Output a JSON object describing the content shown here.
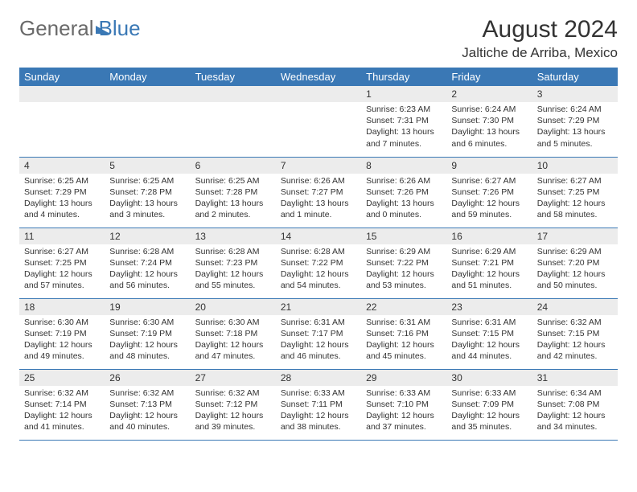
{
  "logo": {
    "general": "General",
    "blue": "Blue"
  },
  "header": {
    "month_title": "August 2024",
    "location": "Jaltiche de Arriba, Mexico"
  },
  "columns": [
    "Sunday",
    "Monday",
    "Tuesday",
    "Wednesday",
    "Thursday",
    "Friday",
    "Saturday"
  ],
  "colors": {
    "accent": "#3a78b5",
    "header_text": "#ffffff",
    "daynum_bg": "#ececec",
    "text": "#333333",
    "bg": "#ffffff"
  },
  "typography": {
    "title_fontsize": 30,
    "location_fontsize": 17,
    "col_header_fontsize": 13,
    "daynum_fontsize": 12,
    "body_fontsize": 10.5
  },
  "weeks": [
    [
      {
        "day": "",
        "lines": []
      },
      {
        "day": "",
        "lines": []
      },
      {
        "day": "",
        "lines": []
      },
      {
        "day": "",
        "lines": []
      },
      {
        "day": "1",
        "lines": [
          "Sunrise: 6:23 AM",
          "Sunset: 7:31 PM",
          "Daylight: 13 hours and 7 minutes."
        ]
      },
      {
        "day": "2",
        "lines": [
          "Sunrise: 6:24 AM",
          "Sunset: 7:30 PM",
          "Daylight: 13 hours and 6 minutes."
        ]
      },
      {
        "day": "3",
        "lines": [
          "Sunrise: 6:24 AM",
          "Sunset: 7:29 PM",
          "Daylight: 13 hours and 5 minutes."
        ]
      }
    ],
    [
      {
        "day": "4",
        "lines": [
          "Sunrise: 6:25 AM",
          "Sunset: 7:29 PM",
          "Daylight: 13 hours and 4 minutes."
        ]
      },
      {
        "day": "5",
        "lines": [
          "Sunrise: 6:25 AM",
          "Sunset: 7:28 PM",
          "Daylight: 13 hours and 3 minutes."
        ]
      },
      {
        "day": "6",
        "lines": [
          "Sunrise: 6:25 AM",
          "Sunset: 7:28 PM",
          "Daylight: 13 hours and 2 minutes."
        ]
      },
      {
        "day": "7",
        "lines": [
          "Sunrise: 6:26 AM",
          "Sunset: 7:27 PM",
          "Daylight: 13 hours and 1 minute."
        ]
      },
      {
        "day": "8",
        "lines": [
          "Sunrise: 6:26 AM",
          "Sunset: 7:26 PM",
          "Daylight: 13 hours and 0 minutes."
        ]
      },
      {
        "day": "9",
        "lines": [
          "Sunrise: 6:27 AM",
          "Sunset: 7:26 PM",
          "Daylight: 12 hours and 59 minutes."
        ]
      },
      {
        "day": "10",
        "lines": [
          "Sunrise: 6:27 AM",
          "Sunset: 7:25 PM",
          "Daylight: 12 hours and 58 minutes."
        ]
      }
    ],
    [
      {
        "day": "11",
        "lines": [
          "Sunrise: 6:27 AM",
          "Sunset: 7:25 PM",
          "Daylight: 12 hours and 57 minutes."
        ]
      },
      {
        "day": "12",
        "lines": [
          "Sunrise: 6:28 AM",
          "Sunset: 7:24 PM",
          "Daylight: 12 hours and 56 minutes."
        ]
      },
      {
        "day": "13",
        "lines": [
          "Sunrise: 6:28 AM",
          "Sunset: 7:23 PM",
          "Daylight: 12 hours and 55 minutes."
        ]
      },
      {
        "day": "14",
        "lines": [
          "Sunrise: 6:28 AM",
          "Sunset: 7:22 PM",
          "Daylight: 12 hours and 54 minutes."
        ]
      },
      {
        "day": "15",
        "lines": [
          "Sunrise: 6:29 AM",
          "Sunset: 7:22 PM",
          "Daylight: 12 hours and 53 minutes."
        ]
      },
      {
        "day": "16",
        "lines": [
          "Sunrise: 6:29 AM",
          "Sunset: 7:21 PM",
          "Daylight: 12 hours and 51 minutes."
        ]
      },
      {
        "day": "17",
        "lines": [
          "Sunrise: 6:29 AM",
          "Sunset: 7:20 PM",
          "Daylight: 12 hours and 50 minutes."
        ]
      }
    ],
    [
      {
        "day": "18",
        "lines": [
          "Sunrise: 6:30 AM",
          "Sunset: 7:19 PM",
          "Daylight: 12 hours and 49 minutes."
        ]
      },
      {
        "day": "19",
        "lines": [
          "Sunrise: 6:30 AM",
          "Sunset: 7:19 PM",
          "Daylight: 12 hours and 48 minutes."
        ]
      },
      {
        "day": "20",
        "lines": [
          "Sunrise: 6:30 AM",
          "Sunset: 7:18 PM",
          "Daylight: 12 hours and 47 minutes."
        ]
      },
      {
        "day": "21",
        "lines": [
          "Sunrise: 6:31 AM",
          "Sunset: 7:17 PM",
          "Daylight: 12 hours and 46 minutes."
        ]
      },
      {
        "day": "22",
        "lines": [
          "Sunrise: 6:31 AM",
          "Sunset: 7:16 PM",
          "Daylight: 12 hours and 45 minutes."
        ]
      },
      {
        "day": "23",
        "lines": [
          "Sunrise: 6:31 AM",
          "Sunset: 7:15 PM",
          "Daylight: 12 hours and 44 minutes."
        ]
      },
      {
        "day": "24",
        "lines": [
          "Sunrise: 6:32 AM",
          "Sunset: 7:15 PM",
          "Daylight: 12 hours and 42 minutes."
        ]
      }
    ],
    [
      {
        "day": "25",
        "lines": [
          "Sunrise: 6:32 AM",
          "Sunset: 7:14 PM",
          "Daylight: 12 hours and 41 minutes."
        ]
      },
      {
        "day": "26",
        "lines": [
          "Sunrise: 6:32 AM",
          "Sunset: 7:13 PM",
          "Daylight: 12 hours and 40 minutes."
        ]
      },
      {
        "day": "27",
        "lines": [
          "Sunrise: 6:32 AM",
          "Sunset: 7:12 PM",
          "Daylight: 12 hours and 39 minutes."
        ]
      },
      {
        "day": "28",
        "lines": [
          "Sunrise: 6:33 AM",
          "Sunset: 7:11 PM",
          "Daylight: 12 hours and 38 minutes."
        ]
      },
      {
        "day": "29",
        "lines": [
          "Sunrise: 6:33 AM",
          "Sunset: 7:10 PM",
          "Daylight: 12 hours and 37 minutes."
        ]
      },
      {
        "day": "30",
        "lines": [
          "Sunrise: 6:33 AM",
          "Sunset: 7:09 PM",
          "Daylight: 12 hours and 35 minutes."
        ]
      },
      {
        "day": "31",
        "lines": [
          "Sunrise: 6:34 AM",
          "Sunset: 7:08 PM",
          "Daylight: 12 hours and 34 minutes."
        ]
      }
    ]
  ]
}
